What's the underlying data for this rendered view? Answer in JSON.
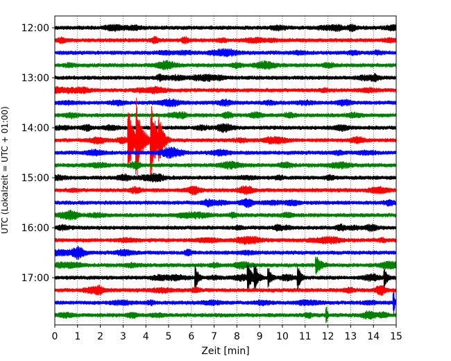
{
  "chart_data": {
    "type": "line",
    "title": "",
    "xlabel": "Zeit  [min]",
    "ylabel": "UTC (Lokalzeit = UTC + 01:00)",
    "xlim": [
      0,
      15
    ],
    "x_ticks": [
      0,
      1,
      2,
      3,
      4,
      5,
      6,
      7,
      8,
      9,
      10,
      11,
      12,
      13,
      14,
      15
    ],
    "y_tick_labels": [
      "12:00",
      "13:00",
      "14:00",
      "15:00",
      "16:00",
      "17:00"
    ],
    "grid": "vertical dotted at each minute",
    "colors": [
      "#000000",
      "#ff0000",
      "#0000ff",
      "#008000"
    ],
    "traces": [
      {
        "start": "12:00",
        "color": "#000000"
      },
      {
        "start": "12:15",
        "color": "#ff0000"
      },
      {
        "start": "12:30",
        "color": "#0000ff"
      },
      {
        "start": "12:45",
        "color": "#008000"
      },
      {
        "start": "13:00",
        "color": "#000000"
      },
      {
        "start": "13:15",
        "color": "#ff0000"
      },
      {
        "start": "13:30",
        "color": "#0000ff"
      },
      {
        "start": "13:45",
        "color": "#008000"
      },
      {
        "start": "14:00",
        "color": "#000000"
      },
      {
        "start": "14:15",
        "color": "#ff0000",
        "events": [
          {
            "t": 3.25,
            "amp": 2.6,
            "dur": 0.5
          },
          {
            "t": 3.6,
            "amp": 3.0,
            "dur": 0.6
          },
          {
            "t": 4.25,
            "amp": 3.0,
            "dur": 0.6
          },
          {
            "t": 4.6,
            "amp": 1.3,
            "dur": 0.5
          }
        ]
      },
      {
        "start": "14:30",
        "color": "#0000ff"
      },
      {
        "start": "14:45",
        "color": "#008000"
      },
      {
        "start": "15:00",
        "color": "#000000"
      },
      {
        "start": "15:15",
        "color": "#ff0000"
      },
      {
        "start": "15:30",
        "color": "#0000ff"
      },
      {
        "start": "15:45",
        "color": "#008000"
      },
      {
        "start": "16:00",
        "color": "#000000"
      },
      {
        "start": "16:15",
        "color": "#ff0000"
      },
      {
        "start": "16:30",
        "color": "#0000ff"
      },
      {
        "start": "16:45",
        "color": "#008000",
        "events": [
          {
            "t": 11.5,
            "amp": 0.6,
            "dur": 0.5
          }
        ]
      },
      {
        "start": "17:00",
        "color": "#000000",
        "events": [
          {
            "t": 6.2,
            "amp": 0.8,
            "dur": 0.3
          },
          {
            "t": 8.5,
            "amp": 0.9,
            "dur": 0.4
          },
          {
            "t": 8.8,
            "amp": 0.9,
            "dur": 0.4
          },
          {
            "t": 9.4,
            "amp": 0.7,
            "dur": 0.3
          },
          {
            "t": 10.7,
            "amp": 0.8,
            "dur": 0.3
          },
          {
            "t": 14.5,
            "amp": 0.7,
            "dur": 0.3
          }
        ]
      },
      {
        "start": "17:15",
        "color": "#ff0000"
      },
      {
        "start": "17:30",
        "color": "#0000ff",
        "events": [
          {
            "t": 14.9,
            "amp": 0.8,
            "dur": 0.1
          }
        ]
      },
      {
        "start": "17:45",
        "color": "#008000",
        "events": [
          {
            "t": 11.95,
            "amp": 0.6,
            "dur": 0.1
          }
        ]
      }
    ]
  }
}
